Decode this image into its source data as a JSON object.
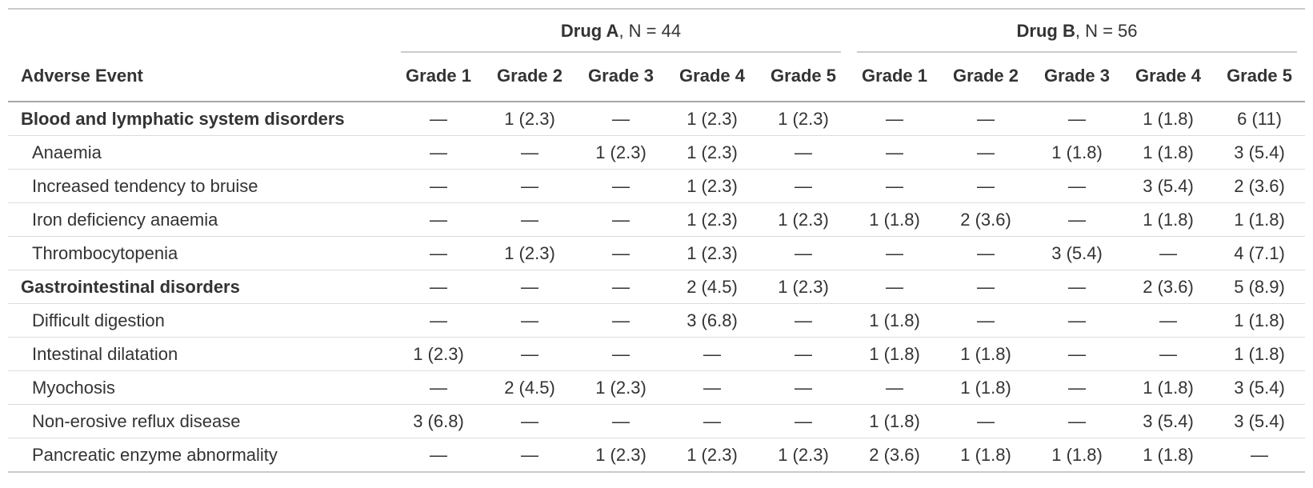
{
  "chart_data": {
    "type": "table",
    "stub_header": "Adverse Event",
    "column_groups": [
      {
        "name": "Drug A",
        "n_suffix": ", N = 44"
      },
      {
        "name": "Drug B",
        "n_suffix": ", N = 56"
      }
    ],
    "grade_columns": [
      "Grade 1",
      "Grade 2",
      "Grade 3",
      "Grade 4",
      "Grade 5"
    ],
    "rows": [
      {
        "label": "Blood and lymphatic system disorders",
        "bold": true,
        "drug_a": [
          "—",
          "1 (2.3)",
          "—",
          "1 (2.3)",
          "1 (2.3)"
        ],
        "drug_b": [
          "—",
          "—",
          "—",
          "1 (1.8)",
          "6 (11)"
        ]
      },
      {
        "label": "Anaemia",
        "bold": false,
        "drug_a": [
          "—",
          "—",
          "1 (2.3)",
          "1 (2.3)",
          "—"
        ],
        "drug_b": [
          "—",
          "—",
          "1 (1.8)",
          "1 (1.8)",
          "3 (5.4)"
        ]
      },
      {
        "label": "Increased tendency to bruise",
        "bold": false,
        "drug_a": [
          "—",
          "—",
          "—",
          "1 (2.3)",
          "—"
        ],
        "drug_b": [
          "—",
          "—",
          "—",
          "3 (5.4)",
          "2 (3.6)"
        ]
      },
      {
        "label": "Iron deficiency anaemia",
        "bold": false,
        "drug_a": [
          "—",
          "—",
          "—",
          "1 (2.3)",
          "1 (2.3)"
        ],
        "drug_b": [
          "1 (1.8)",
          "2 (3.6)",
          "—",
          "1 (1.8)",
          "1 (1.8)"
        ]
      },
      {
        "label": "Thrombocytopenia",
        "bold": false,
        "drug_a": [
          "—",
          "1 (2.3)",
          "—",
          "1 (2.3)",
          "—"
        ],
        "drug_b": [
          "—",
          "—",
          "3 (5.4)",
          "—",
          "4 (7.1)"
        ]
      },
      {
        "label": "Gastrointestinal disorders",
        "bold": true,
        "drug_a": [
          "—",
          "—",
          "—",
          "2 (4.5)",
          "1 (2.3)"
        ],
        "drug_b": [
          "—",
          "—",
          "—",
          "2 (3.6)",
          "5 (8.9)"
        ]
      },
      {
        "label": "Difficult digestion",
        "bold": false,
        "drug_a": [
          "—",
          "—",
          "—",
          "3 (6.8)",
          "—"
        ],
        "drug_b": [
          "1 (1.8)",
          "—",
          "—",
          "—",
          "1 (1.8)"
        ]
      },
      {
        "label": "Intestinal dilatation",
        "bold": false,
        "drug_a": [
          "1 (2.3)",
          "—",
          "—",
          "—",
          "—"
        ],
        "drug_b": [
          "1 (1.8)",
          "1 (1.8)",
          "—",
          "—",
          "1 (1.8)"
        ]
      },
      {
        "label": "Myochosis",
        "bold": false,
        "drug_a": [
          "—",
          "2 (4.5)",
          "1 (2.3)",
          "—",
          "—"
        ],
        "drug_b": [
          "—",
          "1 (1.8)",
          "—",
          "1 (1.8)",
          "3 (5.4)"
        ]
      },
      {
        "label": "Non-erosive reflux disease",
        "bold": false,
        "drug_a": [
          "3 (6.8)",
          "—",
          "—",
          "—",
          "—"
        ],
        "drug_b": [
          "1 (1.8)",
          "—",
          "—",
          "3 (5.4)",
          "3 (5.4)"
        ]
      },
      {
        "label": "Pancreatic enzyme abnormality",
        "bold": false,
        "drug_a": [
          "—",
          "—",
          "1 (2.3)",
          "1 (2.3)",
          "1 (2.3)"
        ],
        "drug_b": [
          "2 (3.6)",
          "1 (1.8)",
          "1 (1.8)",
          "1 (1.8)",
          "—"
        ]
      }
    ]
  },
  "colors": {
    "text": "#333333",
    "table_top_border": "#c9c9c9",
    "spanner_line": "#cccccc",
    "header_bottom_border": "#a8a8a8",
    "row_divider": "#dcdcdc",
    "background": "#ffffff"
  }
}
